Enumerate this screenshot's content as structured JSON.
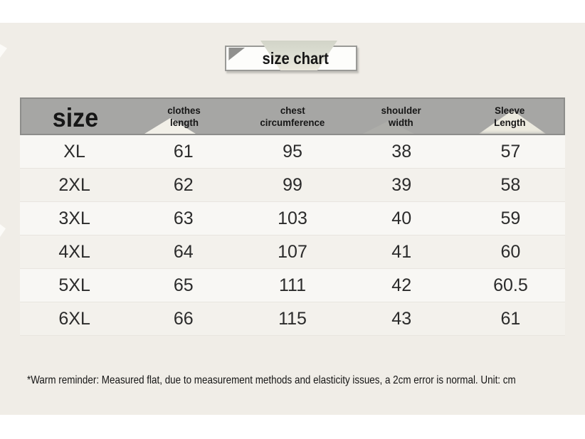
{
  "title": {
    "label": "size chart"
  },
  "table": {
    "columns": [
      {
        "line1": "size",
        "line2": ""
      },
      {
        "line1": "clothes",
        "line2": "length"
      },
      {
        "line1": "chest",
        "line2": "circumference"
      },
      {
        "line1": "shoulder",
        "line2": "width"
      },
      {
        "line1": "Sleeve",
        "line2": "Length"
      }
    ],
    "rows": [
      [
        "XL",
        "61",
        "95",
        "38",
        "57"
      ],
      [
        "2XL",
        "62",
        "99",
        "39",
        "58"
      ],
      [
        "3XL",
        "63",
        "103",
        "40",
        "59"
      ],
      [
        "4XL",
        "64",
        "107",
        "41",
        "60"
      ],
      [
        "5XL",
        "65",
        "111",
        "42",
        "60.5"
      ],
      [
        "6XL",
        "66",
        "115",
        "43",
        "61"
      ]
    ]
  },
  "footer": {
    "note": "*Warm reminder: Measured flat, due to measurement methods and elasticity issues, a 2cm error is normal. Unit: cm"
  },
  "colors": {
    "panel_bg": "#f0ede7",
    "header_bg": "#a6a6a4",
    "header_border": "#8d8d8b",
    "title_border": "#9a9a97",
    "ribbon": "#d6d8cc",
    "row_light": "#f8f7f4",
    "row_dark": "#f3f1ec",
    "text": "#161616"
  }
}
